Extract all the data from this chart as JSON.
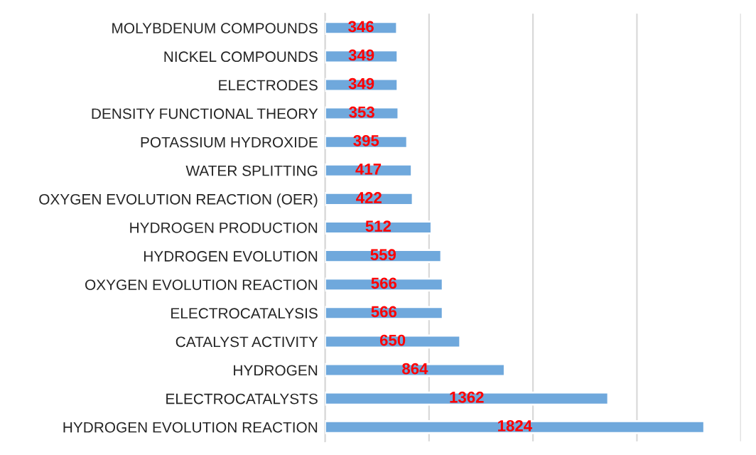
{
  "chart_data": {
    "type": "bar",
    "orientation": "horizontal",
    "categories": [
      "MOLYBDENUM COMPOUNDS",
      "NICKEL COMPOUNDS",
      "ELECTRODES",
      "DENSITY FUNCTIONAL THEORY",
      "POTASSIUM HYDROXIDE",
      "WATER SPLITTING",
      "OXYGEN EVOLUTION REACTION (OER)",
      "HYDROGEN PRODUCTION",
      "HYDROGEN EVOLUTION",
      "OXYGEN EVOLUTION REACTION",
      "ELECTROCATALYSIS",
      "CATALYST ACTIVITY",
      "HYDROGEN",
      "ELECTROCATALYSTS",
      "HYDROGEN EVOLUTION REACTION"
    ],
    "values": [
      346,
      349,
      349,
      353,
      395,
      417,
      422,
      512,
      559,
      566,
      566,
      650,
      864,
      1362,
      1824
    ],
    "color": "#6fa8dc",
    "xlim": [
      0,
      2000
    ],
    "xticks": [
      {
        "value": 0,
        "label": null
      },
      {
        "value": 500,
        "label": null
      },
      {
        "value": 1000,
        "label": null
      },
      {
        "value": 1500,
        "label": null
      },
      {
        "value": 2000,
        "label": null
      }
    ],
    "grid": "x",
    "data_labels": true
  }
}
